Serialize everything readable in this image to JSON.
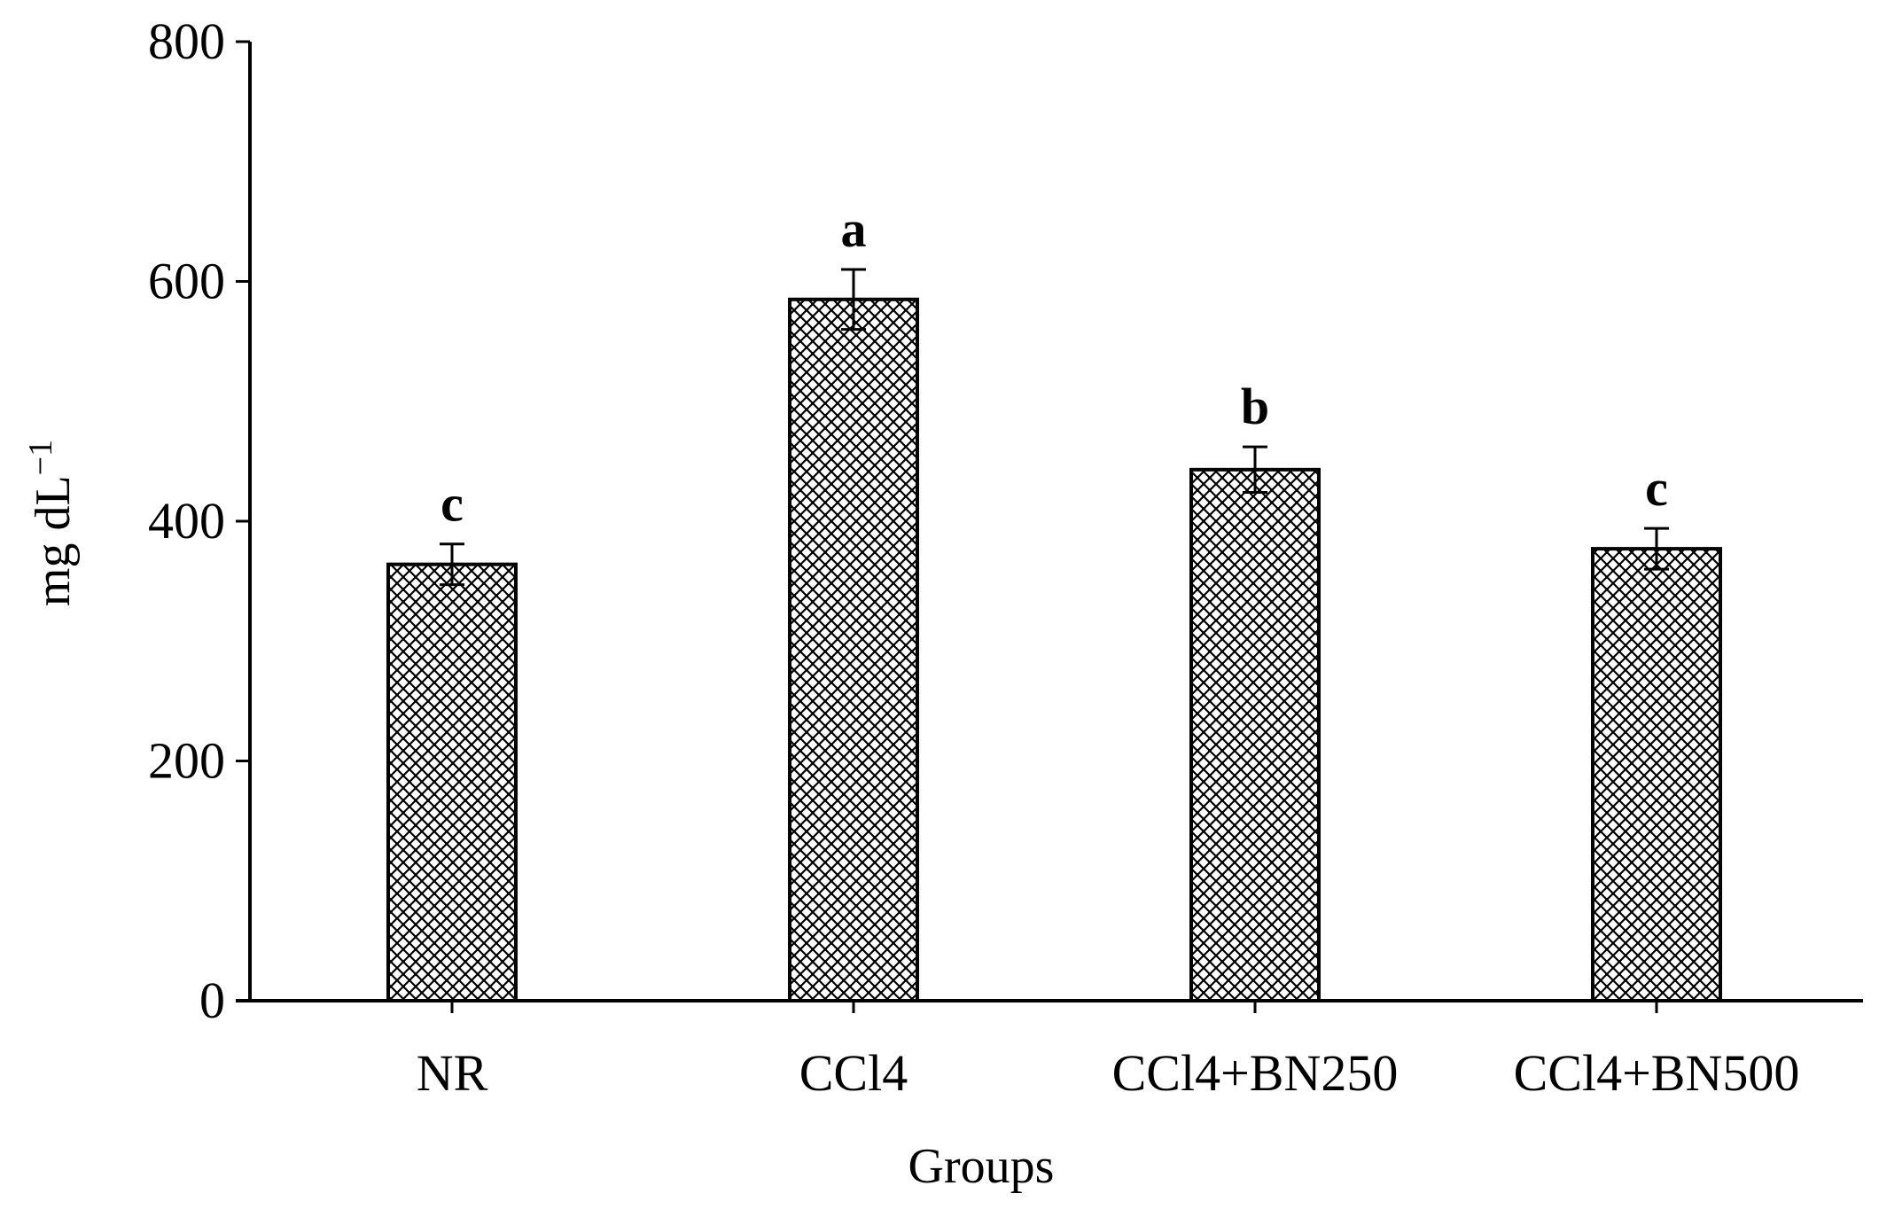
{
  "chart_data": {
    "type": "bar",
    "xlabel": "Groups",
    "ylabel": "mg dL",
    "ylabel_superscript": "−1",
    "ylim": [
      0,
      800
    ],
    "yticks": [
      "0",
      "200",
      "400",
      "600",
      "800"
    ],
    "categories": [
      "NR",
      "CCl4",
      "CCl4+BN250",
      "CCl4+BN500"
    ],
    "values": [
      364,
      585,
      443,
      377
    ],
    "errors": [
      17,
      25,
      19,
      17
    ],
    "significance_letters": [
      "c",
      "a",
      "b",
      "c"
    ],
    "grid": false,
    "legend": "none",
    "bar_pattern": "crosshatch",
    "colors": {
      "bar_outline": "#000000",
      "axis": "#000000",
      "hatch": "#000000",
      "background": "#ffffff"
    }
  }
}
